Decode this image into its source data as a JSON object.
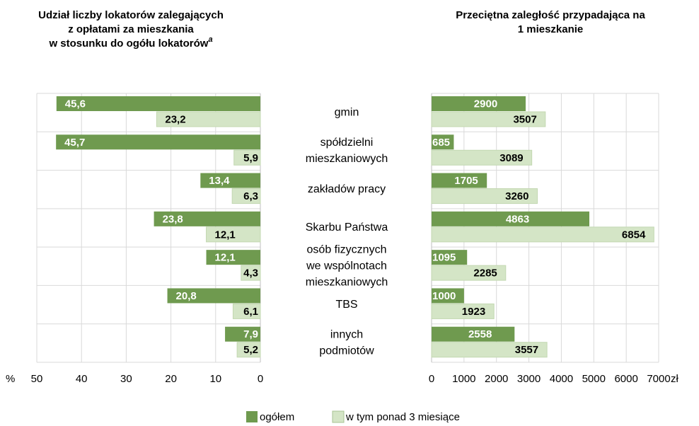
{
  "chart_data": [
    {
      "type": "hbar",
      "title": [
        "Udział liczby lokatorów zalegających",
        "z opłatami za mieszkania",
        "w stosunku do ogółu lokatorów"
      ],
      "title_note": "a",
      "categories": [
        [
          "gmin"
        ],
        [
          "spółdzielni",
          "mieszkaniowych"
        ],
        [
          "zakładów pracy"
        ],
        [
          "Skarbu Państwa"
        ],
        [
          "osób fizycznych",
          "we wspólnotach",
          "mieszkaniowych"
        ],
        [
          "TBS"
        ],
        [
          "innych",
          "podmiotów"
        ]
      ],
      "series": [
        {
          "name": "ogółem",
          "color": "#6f9a4f",
          "values": [
            45.6,
            45.7,
            13.4,
            23.8,
            12.1,
            20.8,
            7.9
          ],
          "value_labels": [
            "45,6",
            "45,7",
            "13,4",
            "23,8",
            "12,1",
            "20,8",
            "7,9"
          ]
        },
        {
          "name": "w tym ponad 3 miesiące",
          "color": "#d4e5c6",
          "values": [
            23.2,
            5.9,
            6.3,
            12.1,
            4.3,
            6.1,
            5.2
          ],
          "value_labels": [
            "23,2",
            "5,9",
            "6,3",
            "12,1",
            "4,3",
            "6,1",
            "5,2"
          ]
        }
      ],
      "xlim": [
        50,
        0
      ],
      "xticks": [
        50,
        40,
        30,
        20,
        10,
        0
      ],
      "x_unit": "%",
      "grid": true
    },
    {
      "type": "hbar",
      "title": [
        "Przeciętna zaległość przypadająca na",
        "1 mieszkanie"
      ],
      "series": [
        {
          "color": "#6f9a4f",
          "values": [
            2900,
            685,
            1705,
            4863,
            1095,
            1000,
            2558
          ]
        },
        {
          "color": "#d4e5c6",
          "values": [
            3507,
            3089,
            3260,
            6854,
            2285,
            1923,
            3557
          ]
        }
      ],
      "xlim": [
        0,
        7000
      ],
      "xticks": [
        0,
        1000,
        2000,
        3000,
        4000,
        5000,
        6000,
        7000
      ],
      "x_unit": "zł",
      "grid": true
    }
  ]
}
